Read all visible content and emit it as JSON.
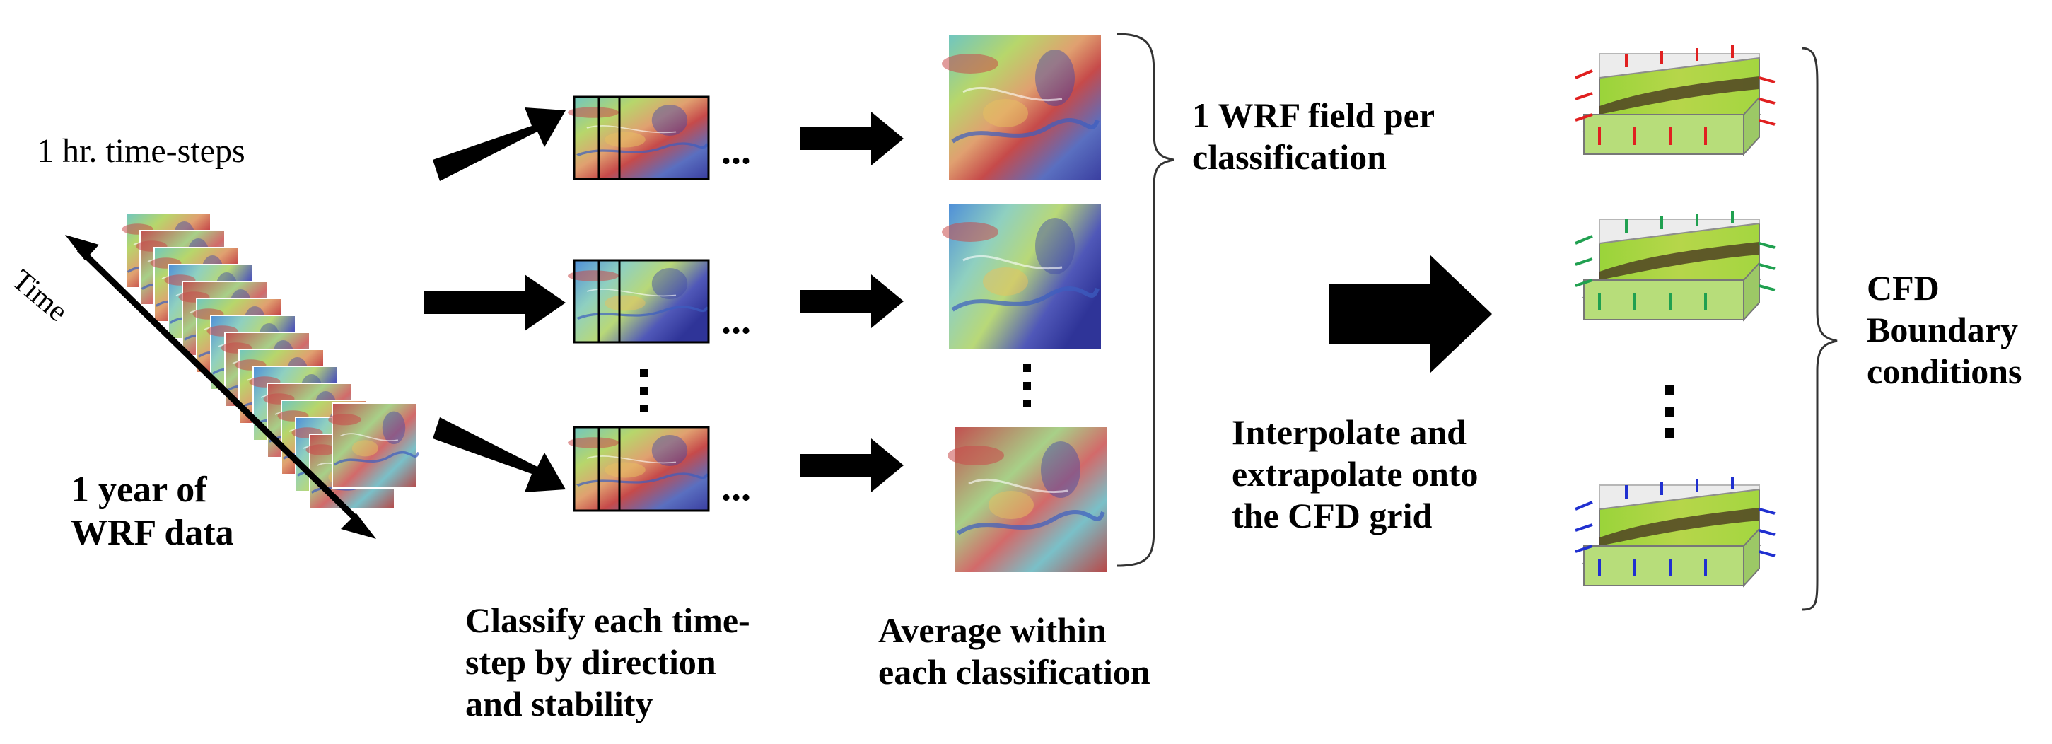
{
  "labels": {
    "timesteps": "1 hr. time-steps",
    "time_axis": "Time",
    "year_line1": "1 year of",
    "year_line2": "WRF data",
    "classify_line1": "Classify each time-",
    "classify_line2": "step by direction",
    "classify_line3": "and stability",
    "average_line1": "Average within",
    "average_line2": "each classification",
    "field_line1": "1 WRF field per",
    "field_line2": "classification",
    "interp_line1": "Interpolate and",
    "interp_line2": "extrapolate onto",
    "interp_line3": "the CFD grid",
    "cfd_line1": "CFD",
    "cfd_line2": "Boundary",
    "cfd_line3": "conditions",
    "ellipsis": "..."
  },
  "colors": {
    "row1_boundary_arrows": "#e02020",
    "row2_boundary_arrows": "#20a050",
    "row3_boundary_arrows": "#2030d0",
    "terrain_green": "#9ad43a",
    "terrain_dark": "#4a3a20",
    "box_side": "#bfe08a"
  }
}
